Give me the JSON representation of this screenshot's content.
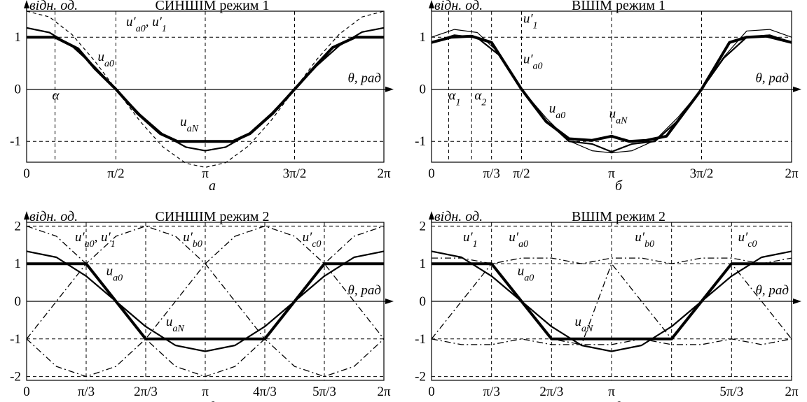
{
  "chart_data": [
    {
      "id": "a",
      "type": "line",
      "title": "СИНШІМ режим 1",
      "ylabel": "відн. од.",
      "xlabel": "θ, рад",
      "caption": "а",
      "xlim": [
        0,
        6.2832
      ],
      "ylim": [
        -1.4,
        1.5
      ],
      "xticks": [
        {
          "v": 0,
          "t": "0"
        },
        {
          "v": 1.5708,
          "t": "π/2"
        },
        {
          "v": 3.1416,
          "t": "π"
        },
        {
          "v": 4.7124,
          "t": "3π/2"
        },
        {
          "v": 6.2832,
          "t": "2π"
        }
      ],
      "yticks": [
        {
          "v": 1,
          "t": "1"
        },
        {
          "v": 0,
          "t": "0"
        },
        {
          "v": -1,
          "t": "-1"
        }
      ],
      "hgrid": [
        1,
        -1
      ],
      "vgrid": [
        0.5,
        1.5708,
        3.1416,
        4.7124
      ],
      "annotations": [
        {
          "text": "u′a0, u′1",
          "x": 1.75,
          "y": 1.22
        },
        {
          "text": "ua0",
          "x": 1.25,
          "y": 0.55
        },
        {
          "text": "uaN",
          "x": 2.7,
          "y": -0.7
        },
        {
          "text": "α",
          "x": 0.45,
          "y": -0.2
        }
      ],
      "series": [
        {
          "key": "dashed_peak",
          "style": "dash",
          "x": [
            0,
            0.4,
            0.8,
            1.2,
            1.5708,
            2.0,
            2.4,
            2.8,
            3.1416,
            3.5,
            3.9,
            4.3,
            4.7124,
            5.1,
            5.5,
            5.9,
            6.2832
          ],
          "y": [
            1.5,
            1.39,
            1.05,
            0.54,
            0,
            -0.62,
            -1.11,
            -1.42,
            -1.5,
            -1.41,
            -1.09,
            -0.6,
            0,
            0.57,
            1.06,
            1.39,
            1.5
          ]
        },
        {
          "key": "u_a0",
          "style": "med",
          "x": [
            0,
            0.4,
            0.8,
            1.2,
            1.5708,
            2.0,
            2.4,
            2.8,
            3.1416,
            3.5,
            3.9,
            4.3,
            4.7124,
            5.1,
            5.5,
            5.9,
            6.2832
          ],
          "y": [
            1.18,
            1.09,
            0.83,
            0.43,
            0,
            -0.49,
            -0.87,
            -1.11,
            -1.18,
            -1.11,
            -0.86,
            -0.47,
            0,
            0.45,
            0.84,
            1.1,
            1.18
          ]
        },
        {
          "key": "u_aN",
          "style": "thick",
          "x": [
            0,
            0.5,
            0.9,
            1.2,
            1.5708,
            1.95,
            2.35,
            2.65,
            3.1416,
            3.63,
            3.93,
            4.33,
            4.7124,
            5.09,
            5.38,
            5.78,
            6.2832
          ],
          "y": [
            1,
            1,
            0.78,
            0.4,
            0,
            -0.46,
            -0.85,
            -1,
            -1,
            -1,
            -0.85,
            -0.46,
            0,
            0.46,
            0.8,
            1,
            1
          ]
        }
      ]
    },
    {
      "id": "b",
      "type": "line",
      "title": "ВШІМ режим 1",
      "ylabel": "відн. од.",
      "xlabel": "θ, рад",
      "caption": "б",
      "xlim": [
        0,
        6.2832
      ],
      "ylim": [
        -1.4,
        1.5
      ],
      "xticks": [
        {
          "v": 0,
          "t": "0"
        },
        {
          "v": 1.0472,
          "t": "π/3"
        },
        {
          "v": 1.5708,
          "t": "π/2"
        },
        {
          "v": 3.1416,
          "t": "π"
        },
        {
          "v": 4.7124,
          "t": "3π/2"
        },
        {
          "v": 6.2832,
          "t": "2π"
        }
      ],
      "yticks": [
        {
          "v": 1,
          "t": "1"
        },
        {
          "v": 0,
          "t": "0"
        },
        {
          "v": -1,
          "t": "-1"
        }
      ],
      "hgrid": [
        1,
        -1
      ],
      "vgrid": [
        0.3,
        0.7,
        1.0472,
        1.5708,
        3.1416,
        4.7124
      ],
      "annotations": [
        {
          "text": "u′1",
          "x": 1.6,
          "y": 1.28
        },
        {
          "text": "u′a0",
          "x": 1.6,
          "y": 0.5
        },
        {
          "text": "ua0",
          "x": 2.05,
          "y": -0.45
        },
        {
          "text": "uaN",
          "x": 3.1,
          "y": -0.55
        },
        {
          "text": "α1",
          "x": 0.3,
          "y": -0.2
        },
        {
          "text": "α2",
          "x": 0.75,
          "y": -0.2
        }
      ],
      "series": [
        {
          "key": "u_1",
          "style": "thin",
          "x": [
            0,
            0.4,
            0.8,
            1.2,
            1.5708,
            2.0,
            2.4,
            2.8,
            3.1416,
            3.5,
            3.9,
            4.3,
            4.7124,
            5.1,
            5.5,
            5.9,
            6.2832
          ],
          "y": [
            1.0,
            1.15,
            1.09,
            0.67,
            0,
            -0.55,
            -0.99,
            -1.18,
            -1.22,
            -1.18,
            -0.98,
            -0.54,
            0,
            0.62,
            1.12,
            1.15,
            1.0
          ]
        },
        {
          "key": "u_a0",
          "style": "med",
          "x": [
            0,
            0.4,
            0.8,
            1.2,
            1.5708,
            2.0,
            2.4,
            2.8,
            3.1416,
            3.5,
            3.9,
            4.3,
            4.7124,
            5.1,
            5.5,
            5.9,
            6.2832
          ],
          "y": [
            0.9,
            1.04,
            0.99,
            0.64,
            0,
            -0.6,
            -1.0,
            -1.05,
            -1.2,
            -1.05,
            -1.0,
            -0.6,
            0,
            0.6,
            1.0,
            1.04,
            0.9
          ]
        },
        {
          "key": "u_aN",
          "style": "thick",
          "x": [
            0,
            0.35,
            0.7,
            1.0472,
            1.5708,
            2.0,
            2.4,
            2.8,
            3.1416,
            3.45,
            3.75,
            4.1,
            4.7124,
            5.2,
            5.5,
            5.85,
            6.2832
          ],
          "y": [
            0.9,
            1.0,
            1.02,
            0.9,
            0,
            -0.62,
            -0.95,
            -0.98,
            -0.9,
            -1.0,
            -0.98,
            -0.9,
            0,
            0.9,
            1.0,
            1.02,
            0.9
          ]
        }
      ]
    },
    {
      "id": "c",
      "type": "line",
      "title": "СИНШІМ режим 2",
      "ylabel": "відн. од.",
      "xlabel": "θ, рад",
      "caption": "в",
      "xlim": [
        0,
        6.2832
      ],
      "ylim": [
        -2.1,
        2.1
      ],
      "xticks": [
        {
          "v": 0,
          "t": "0"
        },
        {
          "v": 1.0472,
          "t": "π/3"
        },
        {
          "v": 2.0944,
          "t": "2π/3"
        },
        {
          "v": 3.1416,
          "t": "π"
        },
        {
          "v": 4.1888,
          "t": "4π/3"
        },
        {
          "v": 5.236,
          "t": "5π/3"
        },
        {
          "v": 6.2832,
          "t": "2π"
        }
      ],
      "yticks": [
        {
          "v": 2,
          "t": "2"
        },
        {
          "v": 1,
          "t": "1"
        },
        {
          "v": 0,
          "t": "0"
        },
        {
          "v": -1,
          "t": "-1"
        },
        {
          "v": -2,
          "t": "-2"
        }
      ],
      "hgrid": [
        2,
        1,
        -1,
        -2
      ],
      "vgrid": [
        1.0472,
        2.0944,
        3.1416,
        4.1888,
        5.236
      ],
      "annotations": [
        {
          "text": "u′a0, u′1",
          "x": 0.85,
          "y": 1.6
        },
        {
          "text": "u′b0",
          "x": 2.75,
          "y": 1.6
        },
        {
          "text": "u′c0",
          "x": 4.85,
          "y": 1.6
        },
        {
          "text": "ua0",
          "x": 1.4,
          "y": 0.7
        },
        {
          "text": "uaN",
          "x": 2.45,
          "y": -0.65
        }
      ],
      "series": [
        {
          "key": "u_1",
          "style": "dashdot",
          "x": [
            0,
            0.5236,
            1.0472,
            1.5708,
            2.0944,
            2.618,
            3.1416,
            3.6652,
            4.1888,
            4.7124,
            5.236,
            5.7596,
            6.2832
          ],
          "y": [
            2,
            1.73,
            1,
            0,
            -1,
            -1.73,
            -2,
            -1.73,
            -1,
            0,
            1,
            1.73,
            2
          ]
        },
        {
          "key": "u_b0",
          "style": "dashdot",
          "x": [
            0,
            0.5236,
            1.0472,
            1.5708,
            2.0944,
            2.618,
            3.1416,
            3.6652,
            4.1888,
            4.7124,
            5.236,
            5.7596,
            6.2832
          ],
          "y": [
            -1,
            0,
            1,
            1.73,
            2,
            1.73,
            1,
            0,
            -1,
            -1.73,
            -2,
            -1.73,
            -1
          ]
        },
        {
          "key": "u_c0",
          "style": "dashdot",
          "x": [
            0,
            0.5236,
            1.0472,
            1.5708,
            2.0944,
            2.618,
            3.1416,
            3.6652,
            4.1888,
            4.7124,
            5.236,
            5.7596,
            6.2832
          ],
          "y": [
            -1,
            -1.73,
            -2,
            -1.73,
            -1,
            0,
            1,
            1.73,
            2,
            1.73,
            1,
            0,
            -1
          ]
        },
        {
          "key": "u_a0",
          "style": "med",
          "x": [
            0,
            0.5236,
            1.0472,
            1.5708,
            2.0944,
            2.618,
            3.1416,
            3.6652,
            4.1888,
            4.7124,
            5.236,
            5.7596,
            6.2832
          ],
          "y": [
            1.33,
            1.17,
            0.67,
            0,
            -0.67,
            -1.17,
            -1.33,
            -1.17,
            -0.67,
            0,
            0.67,
            1.17,
            1.33
          ]
        },
        {
          "key": "u_aN",
          "style": "thick",
          "x": [
            0,
            1.0472,
            2.0944,
            4.1888,
            5.236,
            6.2832
          ],
          "y": [
            1,
            1,
            -1,
            -1,
            1,
            1
          ]
        }
      ]
    },
    {
      "id": "d",
      "type": "line",
      "title": "ВШІМ режим 2",
      "ylabel": "відн. од.",
      "xlabel": "θ, рад",
      "caption": "г",
      "xlim": [
        0,
        6.2832
      ],
      "ylim": [
        -2.1,
        2.1
      ],
      "xticks": [
        {
          "v": 0,
          "t": "0"
        },
        {
          "v": 1.0472,
          "t": "π/3"
        },
        {
          "v": 2.0944,
          "t": "2π/3"
        },
        {
          "v": 3.1416,
          "t": "π"
        },
        {
          "v": 5.236,
          "t": "5π/3"
        },
        {
          "v": 6.2832,
          "t": "2π"
        }
      ],
      "yticks": [
        {
          "v": 2,
          "t": "2"
        },
        {
          "v": 1,
          "t": "1"
        },
        {
          "v": 0,
          "t": "0"
        },
        {
          "v": -1,
          "t": "-1"
        },
        {
          "v": -2,
          "t": "-2"
        }
      ],
      "hgrid": [
        2,
        1,
        -1,
        -2
      ],
      "vgrid": [
        1.0472,
        2.0944,
        3.1416,
        4.1888,
        5.236
      ],
      "annotations": [
        {
          "text": "u′1",
          "x": 0.55,
          "y": 1.6
        },
        {
          "text": "u′a0",
          "x": 1.35,
          "y": 1.6
        },
        {
          "text": "u′b0",
          "x": 3.55,
          "y": 1.6
        },
        {
          "text": "u′c0",
          "x": 5.35,
          "y": 1.6
        },
        {
          "text": "ua0",
          "x": 1.5,
          "y": 0.7
        },
        {
          "text": "uaN",
          "x": 2.5,
          "y": -0.65
        }
      ],
      "series": [
        {
          "key": "u_1",
          "style": "dashdot",
          "x": [
            0,
            0.5236,
            1.0472,
            1.5708,
            2.0944,
            2.618,
            3.1416,
            3.6652,
            4.1888,
            4.7124,
            5.236,
            5.7596,
            6.2832
          ],
          "y": [
            1.15,
            1.15,
            1.0,
            1.15,
            1.15,
            1.0,
            1.15,
            1.15,
            1.0,
            1.15,
            1.15,
            1.0,
            1.15
          ]
        },
        {
          "key": "u_b0",
          "style": "dashdot",
          "x": [
            0,
            0.5236,
            1.0472,
            1.5708,
            2.0944,
            2.618,
            3.1416,
            3.6652,
            4.1888,
            4.7124,
            5.236,
            5.7596,
            6.2832
          ],
          "y": [
            -1,
            0,
            1,
            0,
            -1,
            -1.15,
            -1.15,
            -1.0,
            -1.15,
            -1.15,
            -1,
            -1.15,
            -1
          ]
        },
        {
          "key": "u_c0",
          "style": "dashdot",
          "x": [
            0,
            0.5236,
            1.0472,
            1.5708,
            2.0944,
            2.618,
            3.1416,
            3.6652,
            4.1888,
            4.7124,
            5.236,
            5.7596,
            6.2832
          ],
          "y": [
            -1,
            -1.15,
            -1.15,
            -1.0,
            -1.15,
            -1.15,
            1,
            0,
            -1,
            0,
            1,
            0,
            -1
          ]
        },
        {
          "key": "u_a0",
          "style": "med",
          "x": [
            0,
            0.5236,
            1.0472,
            1.5708,
            2.0944,
            2.618,
            3.1416,
            3.6652,
            4.1888,
            4.7124,
            5.236,
            5.7596,
            6.2832
          ],
          "y": [
            1.33,
            1.17,
            0.67,
            0,
            -0.67,
            -1.17,
            -1.33,
            -1.17,
            -0.67,
            0,
            0.67,
            1.17,
            1.33
          ]
        },
        {
          "key": "u_aN",
          "style": "thick",
          "x": [
            0,
            1.0472,
            2.0944,
            4.1888,
            5.236,
            6.2832
          ],
          "y": [
            1,
            1,
            -1,
            -1,
            1,
            1
          ]
        }
      ]
    }
  ]
}
